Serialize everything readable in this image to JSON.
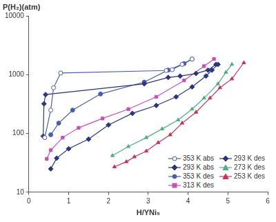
{
  "chart_data": {
    "type": "line",
    "y_label": "P(H₂)(atm)",
    "x_label": "H/YNi₅",
    "log": "y",
    "grid": false,
    "legend": "lower right",
    "xlim": [
      0,
      6
    ],
    "xticks": [
      0,
      1,
      2,
      3,
      4,
      5,
      6
    ],
    "ylim": [
      10,
      10000
    ],
    "yticks": [
      10,
      100,
      1000,
      10000
    ],
    "series": [
      {
        "name": "353 K abs",
        "color": "#4a5db0",
        "marker": "circle-open",
        "x": [
          0.4,
          0.55,
          0.62,
          0.8,
          3.45,
          3.6,
          3.85,
          4.1
        ],
        "values": [
          85,
          250,
          600,
          1070,
          1180,
          1220,
          1500,
          1850
        ]
      },
      {
        "name": "293 K abs",
        "color": "#2b3580",
        "marker": "diamond",
        "x": [
          0.36,
          0.38,
          0.42,
          2.9,
          3.5,
          3.8,
          4.2,
          4.5,
          4.7
        ],
        "values": [
          90,
          320,
          460,
          700,
          900,
          950,
          1050,
          1200,
          1500
        ]
      },
      {
        "name": "353 K des",
        "color": "#4a5db0",
        "marker": "circle",
        "x": [
          0.55,
          0.75,
          1.1,
          1.8,
          2.9,
          3.5,
          3.9,
          4.1
        ],
        "values": [
          95,
          150,
          250,
          470,
          750,
          1200,
          1550,
          1850
        ]
      },
      {
        "name": "313 K des",
        "color": "#c850b4",
        "marker": "square",
        "x": [
          0.45,
          0.55,
          0.85,
          1.25,
          1.85,
          2.5,
          3.2,
          3.9,
          4.4,
          4.65
        ],
        "values": [
          37,
          52,
          85,
          125,
          180,
          260,
          420,
          800,
          1400,
          1850
        ]
      },
      {
        "name": "293 K des",
        "color": "#2b3580",
        "marker": "diamond",
        "x": [
          0.55,
          0.7,
          1.0,
          1.5,
          2.0,
          2.6,
          3.2,
          3.7,
          4.1,
          4.45,
          4.6,
          4.75
        ],
        "values": [
          25,
          38,
          55,
          80,
          140,
          220,
          300,
          420,
          620,
          950,
          1200,
          1500
        ]
      },
      {
        "name": "273 K des",
        "color": "#4fae84",
        "marker": "triangle",
        "x": [
          2.1,
          2.5,
          2.95,
          3.35,
          3.75,
          4.1,
          4.4,
          4.75,
          4.95,
          5.1
        ],
        "values": [
          42,
          60,
          85,
          120,
          170,
          260,
          400,
          700,
          1100,
          1500
        ]
      },
      {
        "name": "253 K des",
        "color": "#c8325a",
        "marker": "triangle",
        "x": [
          2.15,
          2.45,
          2.65,
          2.95,
          3.25,
          3.55,
          3.85,
          4.2,
          4.55,
          4.8,
          5.1,
          5.4
        ],
        "values": [
          27,
          33,
          40,
          50,
          70,
          95,
          150,
          230,
          400,
          600,
          850,
          1600
        ]
      }
    ]
  }
}
